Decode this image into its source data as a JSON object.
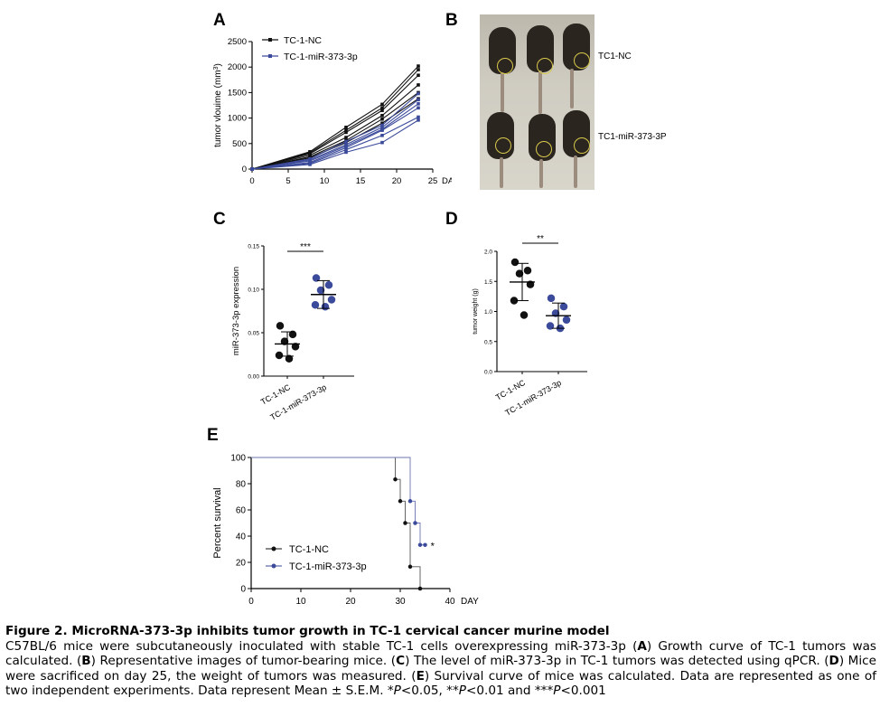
{
  "panel_labels": {
    "a": "A",
    "b": "B",
    "c": "C",
    "d": "D",
    "e": "E"
  },
  "photo": {
    "label_top": "TC1-NC",
    "label_bottom": "TC1-miR-373-3P"
  },
  "chart_data": [
    {
      "id": "A",
      "type": "line",
      "ylabel": "tumor vlouime (mm3)",
      "xlabel": "DAY",
      "xlim": [
        0,
        25
      ],
      "ylim": [
        0,
        2500
      ],
      "xticks": [
        0,
        5,
        10,
        15,
        20,
        25
      ],
      "yticks": [
        0,
        500,
        1000,
        1500,
        2000,
        2500
      ],
      "legend": [
        {
          "name": "TC-1-NC",
          "color": "#111111"
        },
        {
          "name": "TC-1-miR-373-3p",
          "color": "#3b4a9a"
        }
      ],
      "x": [
        0,
        8,
        13,
        18,
        23
      ],
      "series": [
        {
          "group": "TC-1-NC",
          "values": [
            0,
            340,
            820,
            1270,
            2020
          ]
        },
        {
          "group": "TC-1-NC",
          "values": [
            0,
            320,
            760,
            1200,
            1950
          ]
        },
        {
          "group": "TC-1-NC",
          "values": [
            0,
            300,
            720,
            1150,
            1840
          ]
        },
        {
          "group": "TC-1-NC",
          "values": [
            0,
            270,
            620,
            1050,
            1650
          ]
        },
        {
          "group": "TC-1-NC",
          "values": [
            0,
            240,
            560,
            980,
            1500
          ]
        },
        {
          "group": "TC-1-NC",
          "values": [
            0,
            220,
            520,
            900,
            1380
          ]
        },
        {
          "group": "TC-1-miR-373-3p",
          "values": [
            0,
            200,
            540,
            860,
            1480
          ]
        },
        {
          "group": "TC-1-miR-373-3p",
          "values": [
            0,
            180,
            480,
            820,
            1360
          ]
        },
        {
          "group": "TC-1-miR-373-3p",
          "values": [
            0,
            160,
            450,
            780,
            1280
          ]
        },
        {
          "group": "TC-1-miR-373-3p",
          "values": [
            0,
            130,
            420,
            760,
            1200
          ]
        },
        {
          "group": "TC-1-miR-373-3p",
          "values": [
            0,
            110,
            380,
            660,
            1020
          ]
        },
        {
          "group": "TC-1-miR-373-3p",
          "values": [
            0,
            90,
            330,
            520,
            960
          ]
        }
      ]
    },
    {
      "id": "C",
      "type": "scatter",
      "ylabel": "miR-373-3p expression",
      "ylim": [
        0,
        0.15
      ],
      "yticks": [
        "0.00",
        "0.05",
        "0.10",
        "0.15"
      ],
      "categories": [
        "TC-1-NC",
        "TC-1-miR-373-3p"
      ],
      "significance": "***",
      "groups": [
        {
          "name": "TC-1-NC",
          "color": "#111111",
          "points": [
            0.058,
            0.048,
            0.04,
            0.034,
            0.024,
            0.02
          ],
          "mean": 0.037,
          "sd": 0.014
        },
        {
          "name": "TC-1-miR-373-3p",
          "color": "#3b4a9a",
          "points": [
            0.113,
            0.105,
            0.099,
            0.088,
            0.082,
            0.08
          ],
          "mean": 0.094,
          "sd": 0.016
        }
      ]
    },
    {
      "id": "D",
      "type": "scatter",
      "ylabel": "tumor weight (g)",
      "ylim": [
        0,
        2.0
      ],
      "yticks": [
        "0.0",
        "0.5",
        "1.0",
        "1.5",
        "2.0"
      ],
      "categories": [
        "TC-1-NC",
        "TC-1-miR-373-3p"
      ],
      "significance": "**",
      "groups": [
        {
          "name": "TC-1-NC",
          "color": "#111111",
          "points": [
            1.82,
            1.68,
            1.63,
            1.45,
            1.18,
            0.94
          ],
          "mean": 1.49,
          "sd": 0.31
        },
        {
          "name": "TC-1-miR-373-3p",
          "color": "#3b4a9a",
          "points": [
            1.22,
            1.08,
            0.97,
            0.86,
            0.76,
            0.72
          ],
          "mean": 0.93,
          "sd": 0.21
        }
      ]
    },
    {
      "id": "E",
      "type": "line",
      "ylabel": "Percent survival",
      "xlabel": "DAY",
      "xlim": [
        0,
        40
      ],
      "ylim": [
        0,
        100
      ],
      "xticks": [
        0,
        10,
        20,
        30,
        40
      ],
      "yticks": [
        0,
        20,
        40,
        60,
        80,
        100
      ],
      "significance": "*",
      "legend": [
        {
          "name": "TC-1-NC",
          "color": "#111111"
        },
        {
          "name": "TC-1-miR-373-3p",
          "color": "#3b4a9a"
        }
      ],
      "series": [
        {
          "name": "TC-1-NC",
          "color": "#111111",
          "steps": [
            [
              0,
              100
            ],
            [
              29,
              83.3
            ],
            [
              30,
              66.7
            ],
            [
              31,
              50
            ],
            [
              32,
              16.7
            ],
            [
              34,
              0
            ]
          ]
        },
        {
          "name": "TC-1-miR-373-3p",
          "color": "#3b4a9a",
          "steps": [
            [
              0,
              100
            ],
            [
              32,
              66.7
            ],
            [
              33,
              50
            ],
            [
              34,
              33.3
            ],
            [
              35,
              33.3
            ]
          ]
        }
      ]
    }
  ],
  "caption": {
    "title": "Figure 2. MicroRNA-373-3p inhibits tumor growth in TC-1 cervical cancer murine model",
    "p1": "C57BL/6 mice were subcutaneously inoculated with stable TC-1 cells overexpressing miR-373-3p (",
    "A": "A",
    "p2": ") Growth curve of TC-1 tumors was calculated. (",
    "B": "B",
    "p3": ") Representative images of tumor-bearing mice. (",
    "C": "C",
    "p4": ") The level of miR-373-3p in TC-1 tumors was detected using qPCR. (",
    "D": "D",
    "p5": ") Mice were sacrificed on day 25, the weight of tumors was measured. (",
    "E": "E",
    "p6": ") Survival curve of mice was calculated. Data are represented as one of two independent experiments. Data represent Mean ± S.E.M. *",
    "P": "P",
    "p7": "<0.05, **",
    "p8": "<0.01 and ***",
    "p9": "<0.001"
  }
}
